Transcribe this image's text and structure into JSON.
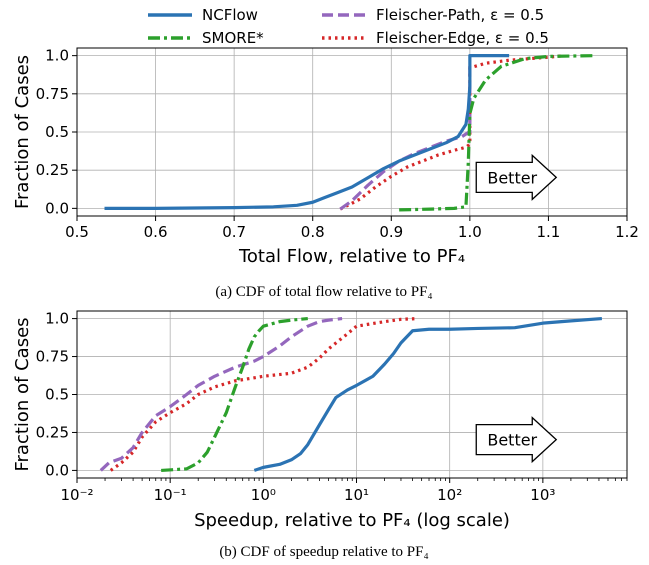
{
  "colors": {
    "ncflow": "#2b73b3",
    "smore": "#2ca02c",
    "fpath": "#9467bd",
    "fedge": "#d62728"
  },
  "legend": {
    "items": [
      {
        "key": "ncflow",
        "label": "NCFlow"
      },
      {
        "key": "smore",
        "label": "SMORE*"
      },
      {
        "key": "fpath",
        "label": "Fleischer-Path, ε = 0.5"
      },
      {
        "key": "fedge",
        "label": "Fleischer-Edge, ε = 0.5"
      }
    ]
  },
  "chart_data": [
    {
      "type": "line",
      "subtitle": "(a) CDF of total flow relative to PF₄",
      "xlabel": "Total Flow, relative to PF₄",
      "ylabel": "Fraction of Cases",
      "xlim": [
        0.5,
        1.2
      ],
      "ylim": [
        -0.05,
        1.05
      ],
      "xticks": [
        0.5,
        0.6,
        0.7,
        0.8,
        0.9,
        1.0,
        1.1,
        1.2
      ],
      "xtick_labels": [
        "0.5",
        "0.6",
        "0.7",
        "0.8",
        "0.9",
        "1.0",
        "1.1",
        "1.2"
      ],
      "yticks": [
        0.0,
        0.25,
        0.5,
        0.75,
        1.0
      ],
      "ytick_labels": [
        "0.0",
        "0.25",
        "0.5",
        "0.75",
        "1.0"
      ],
      "grid": true,
      "legend": "top",
      "annotation": "Better",
      "series": [
        {
          "key": "ncflow",
          "name": "NCFlow",
          "x": [
            0.535,
            0.6,
            0.7,
            0.75,
            0.78,
            0.8,
            0.815,
            0.83,
            0.85,
            0.87,
            0.89,
            0.91,
            0.93,
            0.95,
            0.97,
            0.985,
            0.995,
            0.998,
            1.0,
            1.0,
            1.005,
            1.05
          ],
          "y": [
            0.0,
            0.0,
            0.005,
            0.01,
            0.02,
            0.04,
            0.07,
            0.1,
            0.14,
            0.2,
            0.26,
            0.31,
            0.35,
            0.39,
            0.43,
            0.47,
            0.55,
            0.65,
            0.8,
            1.0,
            1.0,
            1.0
          ]
        },
        {
          "key": "smore",
          "name": "SMORE*",
          "x": [
            0.91,
            0.95,
            0.98,
            0.995,
            0.998,
            1.0,
            1.005,
            1.02,
            1.04,
            1.07,
            1.1,
            1.16
          ],
          "y": [
            -0.01,
            -0.005,
            0.0,
            0.01,
            0.3,
            0.62,
            0.72,
            0.84,
            0.93,
            0.98,
            0.995,
            1.0
          ]
        },
        {
          "key": "fpath",
          "name": "Fleischer-Path, ε = 0.5",
          "x": [
            0.835,
            0.85,
            0.87,
            0.89,
            0.91,
            0.93,
            0.95,
            0.97,
            0.99,
            0.999,
            1.0,
            1.0
          ],
          "y": [
            -0.005,
            0.05,
            0.15,
            0.24,
            0.31,
            0.36,
            0.4,
            0.44,
            0.47,
            0.5,
            0.5,
            0.95
          ]
        },
        {
          "key": "fedge",
          "name": "Fleischer-Edge, ε = 0.5",
          "x": [
            0.835,
            0.86,
            0.88,
            0.9,
            0.92,
            0.94,
            0.96,
            0.98,
            0.995,
            1.0,
            1.0,
            1.02,
            1.05,
            1.1,
            1.12
          ],
          "y": [
            -0.005,
            0.06,
            0.14,
            0.21,
            0.27,
            0.31,
            0.35,
            0.38,
            0.4,
            0.42,
            0.92,
            0.95,
            0.97,
            0.99,
            1.0
          ]
        }
      ]
    },
    {
      "type": "line",
      "subtitle": "(b) CDF of speedup relative to PF₄",
      "xlabel": "Speedup, relative to PF₄ (log scale)",
      "ylabel": "Fraction of Cases",
      "xscale": "log",
      "xlim": [
        0.01,
        8000
      ],
      "ylim": [
        -0.05,
        1.05
      ],
      "xticks": [
        0.01,
        0.1,
        1,
        10,
        100,
        1000
      ],
      "xtick_labels": [
        "10⁻²",
        "10⁻¹",
        "10⁰",
        "10¹",
        "10²",
        "10³"
      ],
      "yticks": [
        0.0,
        0.25,
        0.5,
        0.75,
        1.0
      ],
      "ytick_labels": [
        "0.0",
        "0.25",
        "0.5",
        "0.75",
        "1.0"
      ],
      "grid": true,
      "annotation": "Better",
      "series": [
        {
          "key": "ncflow",
          "name": "NCFlow",
          "x": [
            0.8,
            1.0,
            1.5,
            2.0,
            2.5,
            3.0,
            4.0,
            5.0,
            6.0,
            8.0,
            10,
            15,
            20,
            25,
            30,
            40,
            60,
            100,
            200,
            500,
            1000,
            2000,
            4300
          ],
          "y": [
            0.0,
            0.02,
            0.04,
            0.07,
            0.11,
            0.17,
            0.3,
            0.4,
            0.48,
            0.53,
            0.56,
            0.62,
            0.7,
            0.77,
            0.84,
            0.92,
            0.93,
            0.93,
            0.935,
            0.94,
            0.97,
            0.985,
            1.0
          ]
        },
        {
          "key": "smore",
          "name": "SMORE*",
          "x": [
            0.08,
            0.15,
            0.2,
            0.25,
            0.3,
            0.4,
            0.5,
            0.6,
            0.7,
            0.8,
            0.9,
            1.0,
            1.5,
            2.0,
            3.0
          ],
          "y": [
            0.0,
            0.01,
            0.05,
            0.12,
            0.22,
            0.38,
            0.55,
            0.68,
            0.8,
            0.88,
            0.92,
            0.95,
            0.98,
            0.99,
            1.0
          ]
        },
        {
          "key": "fpath",
          "name": "Fleischer-Path, ε = 0.5",
          "x": [
            0.018,
            0.022,
            0.03,
            0.04,
            0.05,
            0.07,
            0.1,
            0.15,
            0.2,
            0.3,
            0.5,
            0.8,
            1.0,
            1.5,
            2.0,
            3.0,
            4.0,
            5.0,
            7.0
          ],
          "y": [
            0.0,
            0.05,
            0.08,
            0.15,
            0.25,
            0.36,
            0.42,
            0.5,
            0.56,
            0.62,
            0.68,
            0.72,
            0.75,
            0.82,
            0.88,
            0.95,
            0.98,
            0.99,
            1.0
          ]
        },
        {
          "key": "fedge",
          "name": "Fleischer-Edge, ε = 0.5",
          "x": [
            0.023,
            0.03,
            0.04,
            0.05,
            0.07,
            0.1,
            0.15,
            0.2,
            0.3,
            0.5,
            0.8,
            1.0,
            2.0,
            3.0,
            4.0,
            5.0,
            8.0,
            10,
            20,
            30,
            45
          ],
          "y": [
            0.0,
            0.05,
            0.12,
            0.22,
            0.32,
            0.38,
            0.44,
            0.5,
            0.55,
            0.59,
            0.61,
            0.62,
            0.64,
            0.68,
            0.74,
            0.8,
            0.9,
            0.95,
            0.98,
            0.995,
            1.0
          ]
        }
      ]
    }
  ]
}
